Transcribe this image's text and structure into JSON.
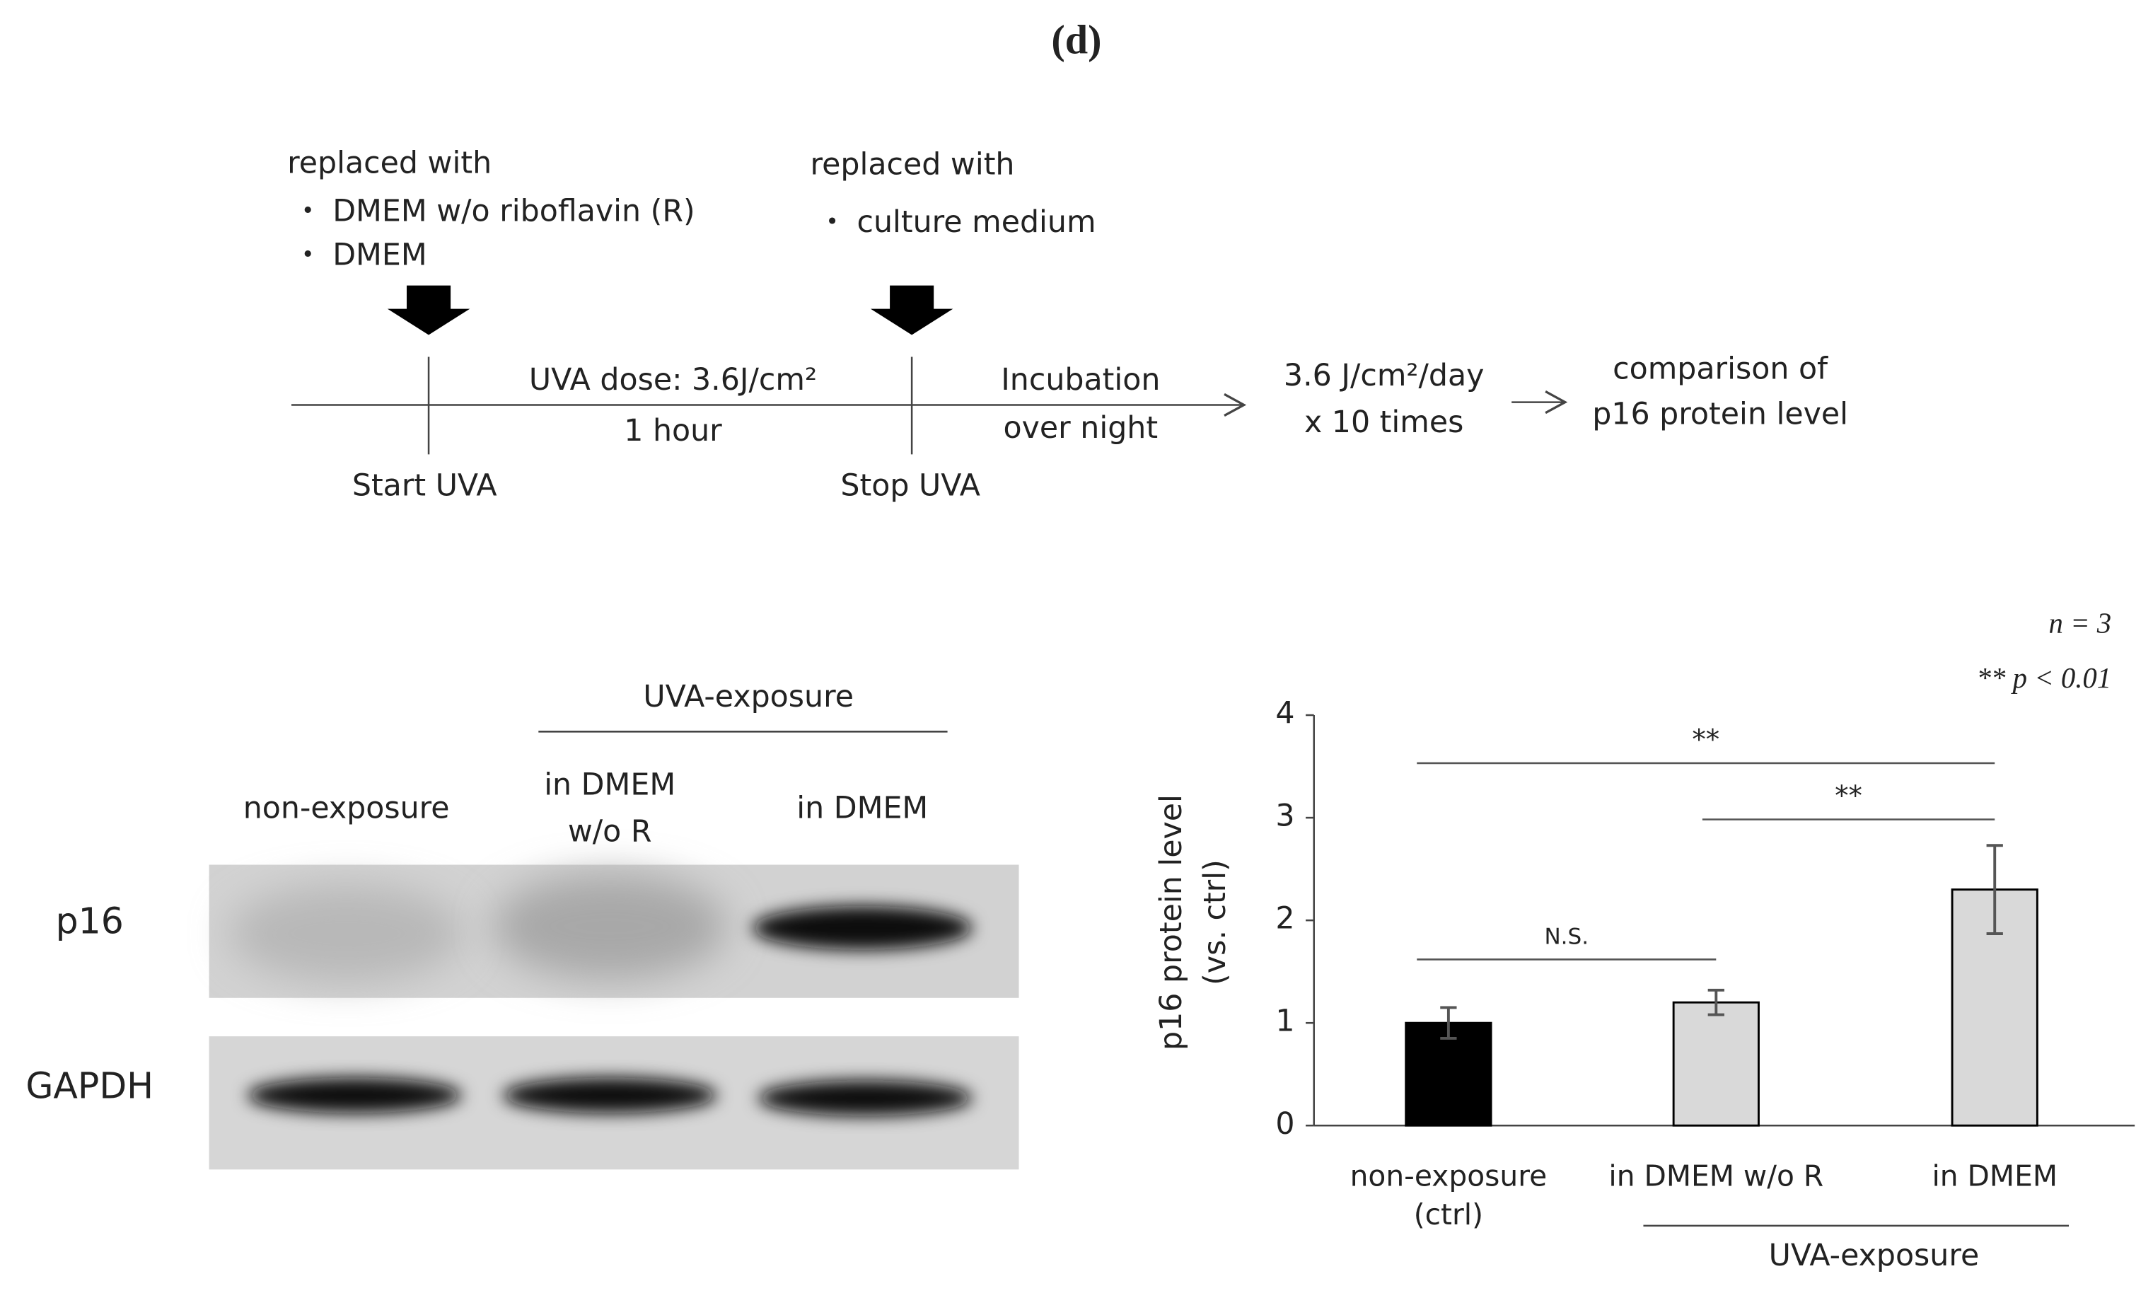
{
  "title": "(d)",
  "timeline": {
    "start_note": {
      "heading": "replaced with",
      "items": [
        "・ DMEM w/o riboflavin (R)",
        "・ DMEM"
      ]
    },
    "stop_note": {
      "heading": "replaced with",
      "items": [
        "・ culture medium"
      ]
    },
    "exposure": [
      "UVA dose: 3.6J/cm²",
      "1 hour"
    ],
    "incubation": [
      "Incubation",
      "over night"
    ],
    "repeat": [
      "3.6 J/cm²/day",
      "x 10 times"
    ],
    "outcome": [
      "comparison of",
      "p16 protein level"
    ],
    "start_label": "Start UVA",
    "stop_label": "Stop UVA"
  },
  "blot": {
    "group_label": "UVA-exposure",
    "lanes": [
      [
        "non-exposure"
      ],
      [
        "in DMEM",
        "w/o R"
      ],
      [
        "in DMEM"
      ]
    ],
    "rows": [
      "p16",
      "GAPDH"
    ]
  },
  "chart_data": {
    "type": "bar",
    "categories": [
      "non-exposure (ctrl)",
      "in DMEM w/o R",
      "in DMEM"
    ],
    "values": [
      1.0,
      1.2,
      2.3
    ],
    "errors": [
      0.15,
      0.12,
      0.43
    ],
    "colors": [
      "#000000",
      "#d9d9d9",
      "#d9d9d9"
    ],
    "ylabel": [
      "p16 protein level",
      "(vs. ctrl)"
    ],
    "ylim": [
      0,
      4
    ],
    "yticks": [
      0,
      1,
      2,
      3,
      4
    ],
    "group_label": "UVA-exposure",
    "significance": [
      {
        "from": 0,
        "to": 2,
        "label": "**"
      },
      {
        "from": 1,
        "to": 2,
        "label": "**"
      },
      {
        "from": 0,
        "to": 1,
        "label": "N.S."
      }
    ],
    "notes": [
      "n = 3",
      "** p < 0.01"
    ]
  }
}
